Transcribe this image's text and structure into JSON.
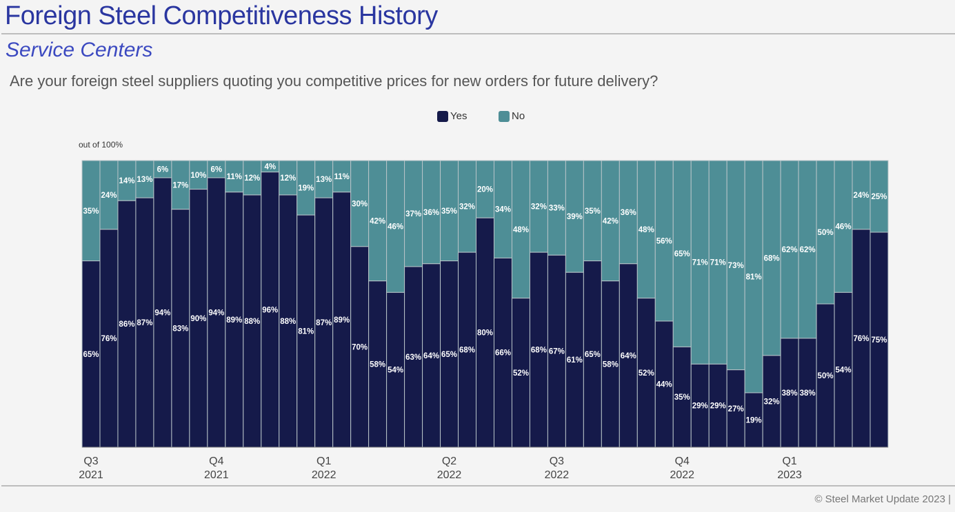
{
  "header": {
    "title": "Foreign Steel Competitiveness History",
    "subtitle": "Service Centers",
    "question": "Are your foreign steel suppliers quoting you competitive prices for new orders for future delivery?"
  },
  "footer": {
    "copyright": "© Steel Market Update 2023 |"
  },
  "colors": {
    "yes": "#151a4a",
    "no": "#4e8e96",
    "title": "#2a36a0"
  },
  "chart_data": {
    "type": "bar",
    "stacked": true,
    "ylabel": "out of 100%",
    "ylim": [
      0,
      100
    ],
    "legend": [
      "Yes",
      "No"
    ],
    "legend_position": "top-center",
    "x_ticks": [
      {
        "index": 0,
        "label1": "Q3",
        "label2": "2021"
      },
      {
        "index": 7,
        "label1": "Q4",
        "label2": "2021"
      },
      {
        "index": 13,
        "label1": "Q1",
        "label2": "2022"
      },
      {
        "index": 20,
        "label1": "Q2",
        "label2": "2022"
      },
      {
        "index": 26,
        "label1": "Q3",
        "label2": "2022"
      },
      {
        "index": 33,
        "label1": "Q4",
        "label2": "2022"
      },
      {
        "index": 39,
        "label1": "Q1",
        "label2": "2023"
      }
    ],
    "series": [
      {
        "name": "Yes",
        "values": [
          65,
          76,
          86,
          87,
          94,
          83,
          90,
          94,
          89,
          88,
          96,
          88,
          81,
          87,
          89,
          70,
          58,
          54,
          63,
          64,
          65,
          68,
          80,
          66,
          52,
          68,
          67,
          61,
          65,
          58,
          64,
          52,
          44,
          35,
          29,
          29,
          27,
          19,
          32,
          38,
          38,
          50,
          54,
          76,
          75
        ],
        "labels": [
          "65%",
          "76%",
          "86%",
          "87%",
          "94%",
          "83%",
          "90%",
          "94%",
          "89%",
          "88%",
          "96%",
          "88%",
          "81%",
          "87%",
          "89%",
          "70%",
          "58%",
          "54%",
          "63%",
          "64%",
          "65%",
          "68%",
          "80%",
          "66%",
          "52%",
          "68%",
          "67%",
          "61%",
          "65%",
          "58%",
          "64%",
          "52%",
          "44%",
          "35%",
          "29%",
          "29%",
          "27%",
          "19%",
          "32%",
          "38%",
          "38%",
          "50%",
          "54%",
          "76%",
          "75%"
        ]
      },
      {
        "name": "No",
        "values": [
          35,
          24,
          14,
          13,
          6,
          17,
          10,
          6,
          11,
          12,
          4,
          12,
          19,
          13,
          11,
          30,
          42,
          46,
          37,
          36,
          35,
          32,
          20,
          34,
          48,
          32,
          33,
          39,
          35,
          42,
          36,
          48,
          56,
          65,
          71,
          71,
          73,
          81,
          68,
          62,
          62,
          50,
          46,
          24,
          25
        ],
        "labels": [
          "35%",
          "24%",
          "14%",
          "13%",
          "6%",
          "17%",
          "10%",
          "6%",
          "11%",
          "12%",
          "4%",
          "12%",
          "19%",
          "13%",
          "11%",
          "30%",
          "42%",
          "46%",
          "37%",
          "36%",
          "35%",
          "32%",
          "20%",
          "34%",
          "48%",
          "32%",
          "33%",
          "39%",
          "35%",
          "42%",
          "36%",
          "48%",
          "56%",
          "65%",
          "71%",
          "71%",
          "73%",
          "81%",
          "68%",
          "62%",
          "62%",
          "50%",
          "46%",
          "24%",
          "25%"
        ]
      }
    ]
  }
}
